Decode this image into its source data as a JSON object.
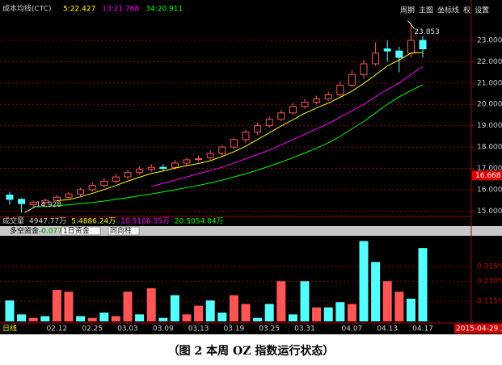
{
  "toolbar": [
    "周期",
    "主图",
    "坐标线",
    "权",
    "设置"
  ],
  "volume_header": [
    "成交量",
    "4947.77万",
    "5:4886.24万",
    "10:5106.35万",
    "20:5054.84万"
  ],
  "caption": "（图 2  本周 OZ 指数运行状态）",
  "chart_data": [
    {
      "type": "candlestick",
      "title": "成本均线(CTC)",
      "open": [
        15.75,
        15.55,
        15.3,
        15.4,
        15.5,
        15.65,
        15.8,
        16.0,
        16.2,
        16.4,
        16.6,
        16.8,
        16.95,
        17.05,
        17.05,
        17.25,
        17.45,
        17.5,
        17.7,
        18.0,
        18.35,
        18.7,
        19.0,
        19.3,
        19.6,
        19.9,
        20.1,
        20.25,
        20.45,
        20.9,
        21.4,
        21.9,
        22.6,
        22.5,
        22.4,
        23.0
      ],
      "high": [
        15.9,
        15.6,
        15.5,
        15.6,
        15.75,
        15.9,
        16.1,
        16.35,
        16.55,
        16.75,
        16.95,
        17.1,
        17.2,
        17.2,
        17.4,
        17.5,
        17.6,
        17.85,
        18.1,
        18.45,
        18.8,
        19.15,
        19.45,
        19.75,
        20.05,
        20.25,
        20.4,
        20.6,
        21.1,
        21.6,
        22.1,
        22.9,
        23.0,
        22.7,
        23.853,
        23.2
      ],
      "low": [
        15.3,
        14.928,
        15.2,
        15.3,
        15.4,
        15.55,
        15.7,
        15.9,
        16.1,
        16.3,
        16.5,
        16.7,
        16.85,
        16.9,
        16.95,
        17.1,
        17.3,
        17.4,
        17.6,
        17.9,
        18.2,
        18.55,
        18.9,
        19.2,
        19.5,
        19.8,
        20.0,
        20.15,
        20.35,
        20.8,
        21.2,
        21.8,
        22.0,
        21.5,
        22.2,
        22.2
      ],
      "close": [
        15.55,
        15.35,
        15.4,
        15.5,
        15.65,
        15.8,
        16.0,
        16.2,
        16.4,
        16.6,
        16.8,
        16.95,
        17.05,
        17.0,
        17.25,
        17.4,
        17.45,
        17.7,
        18.0,
        18.35,
        18.7,
        19.0,
        19.3,
        19.6,
        19.9,
        20.1,
        20.25,
        20.45,
        20.9,
        21.4,
        21.9,
        22.4,
        22.5,
        22.2,
        23.0,
        22.6
      ],
      "up_color": "#ff5555",
      "down_color": "#54ffff",
      "series": [
        {
          "name": "5:22.427",
          "color": "#ffff00",
          "values": [
            null,
            null,
            null,
            null,
            15.49,
            15.54,
            15.67,
            15.83,
            16.01,
            16.2,
            16.4,
            16.59,
            16.76,
            16.88,
            17.01,
            17.13,
            17.23,
            17.36,
            17.56,
            17.78,
            18.04,
            18.35,
            18.67,
            18.99,
            19.28,
            19.58,
            19.83,
            20.06,
            20.33,
            20.62,
            20.98,
            21.38,
            21.8,
            22.08,
            22.4,
            22.43
          ]
        },
        {
          "name": "13:21.768",
          "color": "#ff00ff",
          "values": [
            null,
            null,
            null,
            null,
            null,
            null,
            null,
            null,
            null,
            null,
            null,
            null,
            16.15,
            16.3,
            16.45,
            16.6,
            16.75,
            16.9,
            17.05,
            17.25,
            17.45,
            17.65,
            17.85,
            18.1,
            18.35,
            18.6,
            18.85,
            19.1,
            19.4,
            19.7,
            20.0,
            20.35,
            20.7,
            21.0,
            21.4,
            21.77
          ]
        },
        {
          "name": "34:20.911",
          "color": "#00ff00",
          "values": [
            null,
            null,
            15.2,
            15.22,
            15.25,
            15.3,
            15.35,
            15.4,
            15.47,
            15.55,
            15.63,
            15.72,
            15.8,
            15.9,
            16.0,
            16.1,
            16.2,
            16.32,
            16.45,
            16.6,
            16.75,
            16.92,
            17.1,
            17.3,
            17.5,
            17.72,
            17.95,
            18.2,
            18.5,
            18.85,
            19.2,
            19.6,
            20.0,
            20.35,
            20.65,
            20.91
          ]
        }
      ],
      "annotations": [
        "23.853",
        "14.928"
      ],
      "price_marker": 16.668,
      "ylim": [
        14.75,
        24.7
      ],
      "yticks": [
        {
          "value": 15,
          "label": "15.000"
        },
        {
          "value": 16,
          "label": "16.000"
        },
        {
          "value": 17,
          "label": "17.000"
        },
        {
          "value": 18,
          "label": "18.000"
        },
        {
          "value": 19,
          "label": "19.000"
        },
        {
          "value": 20,
          "label": "20.000"
        },
        {
          "value": 21,
          "label": "21.000"
        },
        {
          "value": 22,
          "label": "22.000"
        },
        {
          "value": 23,
          "label": "23.000"
        }
      ],
      "grid": true
    },
    {
      "type": "bar",
      "title": "多空资金",
      "subtitle": "-0.077%",
      "controls": [
        "1日资金",
        "同向柱"
      ],
      "period": "日线",
      "date": "2015-04-29 三",
      "categories": [
        null,
        null,
        null,
        null,
        "02.12",
        null,
        null,
        "02.25",
        null,
        null,
        "03.03",
        null,
        null,
        "03.09",
        null,
        null,
        "03.13",
        null,
        null,
        "03.19",
        null,
        null,
        "03.25",
        null,
        null,
        "03.31",
        null,
        null,
        null,
        "04.07",
        null,
        null,
        "04.13",
        null,
        null,
        "04.17"
      ],
      "values": [
        0.12,
        0.04,
        0.02,
        0.03,
        0.18,
        0.17,
        0.03,
        0.02,
        0.05,
        0.03,
        0.17,
        0.04,
        0.19,
        0.02,
        0.15,
        0.04,
        0.09,
        0.12,
        0.05,
        0.15,
        0.1,
        0.02,
        0.1,
        0.23,
        0.04,
        0.23,
        0.08,
        0.08,
        0.11,
        0.1,
        0.46,
        0.34,
        0.23,
        0.17,
        0.13,
        0.42
      ],
      "colors": [
        "#54ffff",
        "#54ffff",
        "#ff5555",
        "#54ffff",
        "#ff5555",
        "#ff5555",
        "#54ffff",
        "#ff5555",
        "#54ffff",
        "#ff5555",
        "#ff5555",
        "#54ffff",
        "#ff5555",
        "#54ffff",
        "#54ffff",
        "#ff5555",
        "#ff5555",
        "#54ffff",
        "#54ffff",
        "#ff5555",
        "#ff5555",
        "#54ffff",
        "#54ffff",
        "#ff5555",
        "#54ffff",
        "#54ffff",
        "#ff5555",
        "#54ffff",
        "#54ffff",
        "#ff5555",
        "#54ffff",
        "#54ffff",
        "#ff5555",
        "#ff5555",
        "#54ffff",
        "#54ffff"
      ],
      "ylim": [
        0,
        0.49
      ],
      "yticks": [
        {
          "value": 0.115,
          "label": "0.115%"
        },
        {
          "value": 0.23,
          "label": "0.230%"
        },
        {
          "value": 0.315,
          "label": "0.315%"
        }
      ],
      "grid": true
    }
  ]
}
